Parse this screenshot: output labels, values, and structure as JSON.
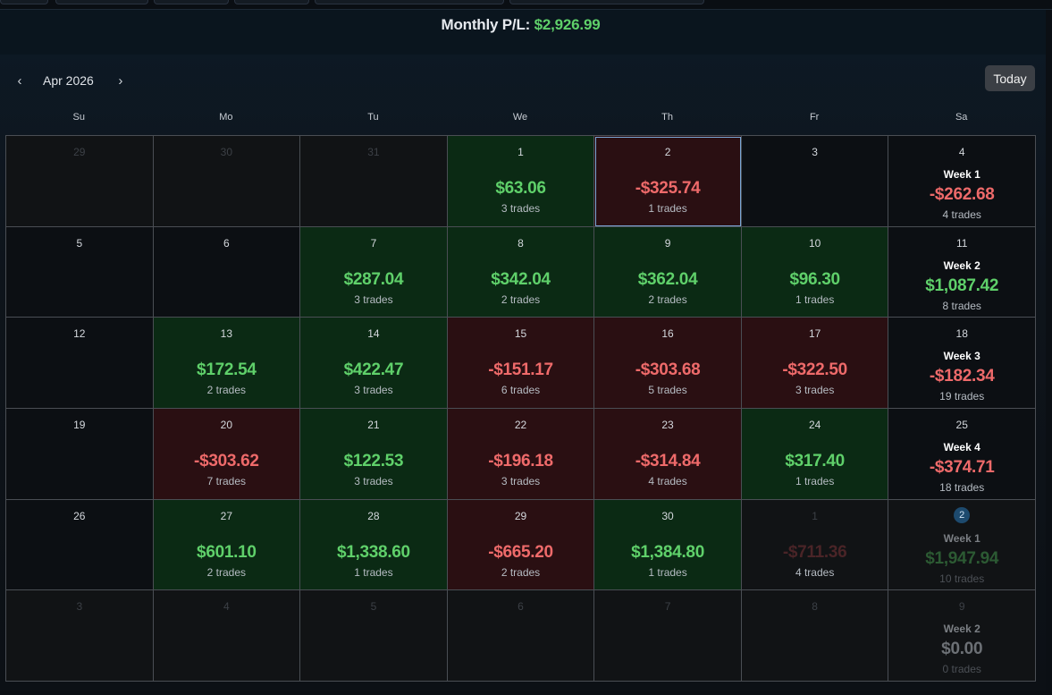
{
  "header": {
    "monthly_label": "Monthly P/L:",
    "monthly_value": "$2,926.99"
  },
  "nav": {
    "prev_icon": "‹",
    "next_icon": "›",
    "month": "Apr 2026",
    "today_label": "Today"
  },
  "days_of_week": [
    "Su",
    "Mo",
    "Tu",
    "We",
    "Th",
    "Fr",
    "Sa"
  ],
  "weeks": [
    {
      "cells": [
        {
          "day": "29",
          "state": "dim"
        },
        {
          "day": "30",
          "state": "dim"
        },
        {
          "day": "31",
          "state": "dim"
        },
        {
          "day": "1",
          "state": "pos",
          "amount": "$63.06",
          "trades": "3 trades"
        },
        {
          "day": "2",
          "state": "neg",
          "amount": "-$325.74",
          "trades": "1 trades",
          "selected": true
        },
        {
          "day": "3",
          "state": "empty"
        }
      ],
      "summary": {
        "day": "4",
        "week": "Week 1",
        "amount": "-$262.68",
        "trades": "4 trades",
        "sign": "neg"
      }
    },
    {
      "cells": [
        {
          "day": "5",
          "state": "empty"
        },
        {
          "day": "6",
          "state": "empty"
        },
        {
          "day": "7",
          "state": "pos",
          "amount": "$287.04",
          "trades": "3 trades"
        },
        {
          "day": "8",
          "state": "pos",
          "amount": "$342.04",
          "trades": "2 trades"
        },
        {
          "day": "9",
          "state": "pos",
          "amount": "$362.04",
          "trades": "2 trades"
        },
        {
          "day": "10",
          "state": "pos",
          "amount": "$96.30",
          "trades": "1 trades"
        }
      ],
      "summary": {
        "day": "11",
        "week": "Week 2",
        "amount": "$1,087.42",
        "trades": "8 trades",
        "sign": "pos"
      }
    },
    {
      "cells": [
        {
          "day": "12",
          "state": "empty"
        },
        {
          "day": "13",
          "state": "pos",
          "amount": "$172.54",
          "trades": "2 trades"
        },
        {
          "day": "14",
          "state": "pos",
          "amount": "$422.47",
          "trades": "3 trades"
        },
        {
          "day": "15",
          "state": "neg",
          "amount": "-$151.17",
          "trades": "6 trades"
        },
        {
          "day": "16",
          "state": "neg",
          "amount": "-$303.68",
          "trades": "5 trades"
        },
        {
          "day": "17",
          "state": "neg",
          "amount": "-$322.50",
          "trades": "3 trades"
        }
      ],
      "summary": {
        "day": "18",
        "week": "Week 3",
        "amount": "-$182.34",
        "trades": "19 trades",
        "sign": "neg"
      }
    },
    {
      "cells": [
        {
          "day": "19",
          "state": "empty"
        },
        {
          "day": "20",
          "state": "neg",
          "amount": "-$303.62",
          "trades": "7 trades"
        },
        {
          "day": "21",
          "state": "pos",
          "amount": "$122.53",
          "trades": "3 trades"
        },
        {
          "day": "22",
          "state": "neg",
          "amount": "-$196.18",
          "trades": "3 trades"
        },
        {
          "day": "23",
          "state": "neg",
          "amount": "-$314.84",
          "trades": "4 trades"
        },
        {
          "day": "24",
          "state": "pos",
          "amount": "$317.40",
          "trades": "1 trades"
        }
      ],
      "summary": {
        "day": "25",
        "week": "Week 4",
        "amount": "-$374.71",
        "trades": "18 trades",
        "sign": "neg"
      }
    },
    {
      "cells": [
        {
          "day": "26",
          "state": "empty"
        },
        {
          "day": "27",
          "state": "pos",
          "amount": "$601.10",
          "trades": "2 trades"
        },
        {
          "day": "28",
          "state": "pos",
          "amount": "$1,338.60",
          "trades": "1 trades"
        },
        {
          "day": "29",
          "state": "neg",
          "amount": "-$665.20",
          "trades": "2 trades"
        },
        {
          "day": "30",
          "state": "pos",
          "amount": "$1,384.80",
          "trades": "1 trades"
        },
        {
          "day": "1",
          "state": "dim",
          "amount": "-$711.36",
          "trades": "4 trades",
          "faded": "red"
        }
      ],
      "summary": {
        "day": "2",
        "week": "Week 1",
        "amount": "$1,947.94",
        "trades": "10 trades",
        "sign": "faded-pos",
        "badge": true
      }
    },
    {
      "cells": [
        {
          "day": "3",
          "state": "dim"
        },
        {
          "day": "4",
          "state": "dim"
        },
        {
          "day": "5",
          "state": "dim"
        },
        {
          "day": "6",
          "state": "dim"
        },
        {
          "day": "7",
          "state": "dim"
        },
        {
          "day": "8",
          "state": "dim"
        }
      ],
      "summary": {
        "day": "9",
        "week": "Week 2",
        "amount": "$0.00",
        "trades": "0 trades",
        "sign": "grey"
      }
    }
  ],
  "colors": {
    "positive": "#5fd06a",
    "negative": "#ee6a6a",
    "accent": "#7aa7d6"
  }
}
